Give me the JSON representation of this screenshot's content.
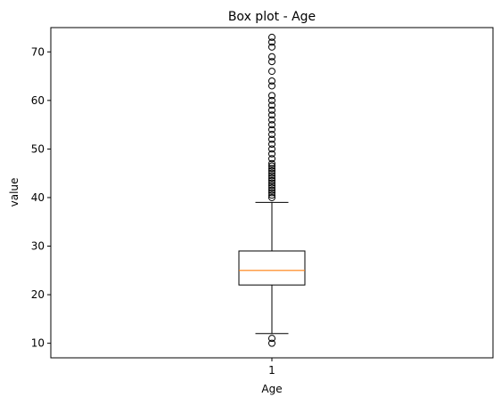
{
  "chart_data": {
    "type": "box",
    "title": "Box plot - Age",
    "xlabel": "Age",
    "ylabel": "value",
    "categories": [
      "1"
    ],
    "ylim": [
      7,
      75
    ],
    "yticks": [
      10,
      20,
      30,
      40,
      50,
      60,
      70
    ],
    "grid": false,
    "boxes": [
      {
        "category": "1",
        "whisker_low": 12,
        "q1": 22,
        "median": 25,
        "q3": 29,
        "whisker_high": 39,
        "outliers": [
          10,
          11,
          40,
          40.5,
          41,
          41.5,
          42,
          42.5,
          43,
          43.5,
          44,
          44.5,
          45,
          45.5,
          46,
          46.5,
          47,
          48,
          49,
          50,
          51,
          52,
          53,
          54,
          55,
          56,
          57,
          58,
          59,
          60,
          61,
          63,
          64,
          66,
          68,
          69,
          71,
          72,
          73
        ]
      }
    ],
    "colors": {
      "box": "#000000",
      "median": "#ff7f0e",
      "outlier": "#000000"
    }
  }
}
